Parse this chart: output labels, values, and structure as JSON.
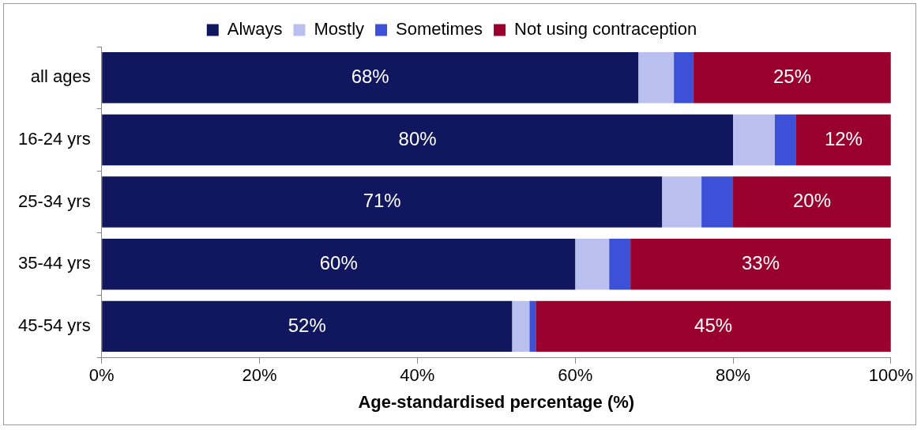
{
  "chart_data": {
    "type": "bar",
    "orientation": "horizontal",
    "stacked": true,
    "xlabel": "Age-standardised percentage (%)",
    "categories": [
      "all ages",
      "16-24 yrs",
      "25-34 yrs",
      "35-44 yrs",
      "45-54 yrs"
    ],
    "series": [
      {
        "name": "Always",
        "color": "#11175e",
        "values": [
          68,
          80,
          71,
          60,
          52
        ],
        "value_labels": [
          "68%",
          "80%",
          "71%",
          "60%",
          "52%"
        ]
      },
      {
        "name": "Mostly",
        "color": "#b9c0f0",
        "values": [
          4.5,
          5.3,
          5,
          4.3,
          2.2
        ]
      },
      {
        "name": "Sometimes",
        "color": "#3c50d8",
        "values": [
          2.5,
          2.7,
          4,
          2.7,
          0.8
        ]
      },
      {
        "name": "Not using contraception",
        "color": "#99002e",
        "values": [
          25,
          12,
          20,
          33,
          45
        ],
        "value_labels": [
          "25%",
          "12%",
          "20%",
          "33%",
          "45%"
        ]
      }
    ],
    "xlim": [
      0,
      100
    ],
    "xticks": [
      {
        "value": 0,
        "label": "0%"
      },
      {
        "value": 20,
        "label": "20%"
      },
      {
        "value": 40,
        "label": "40%"
      },
      {
        "value": 60,
        "label": "60%"
      },
      {
        "value": 80,
        "label": "80%"
      },
      {
        "value": 100,
        "label": "100%"
      }
    ],
    "grid": false,
    "legend": "top"
  }
}
